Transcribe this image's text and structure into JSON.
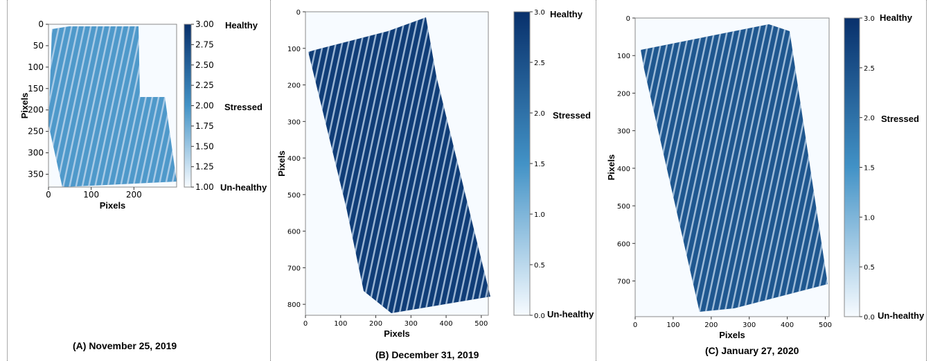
{
  "colors": {
    "dark": "#08306b",
    "mid": "#4292c6",
    "light": "#c6dbef",
    "background": "#f7fbff",
    "frame": "#888888"
  },
  "chart_data": [
    {
      "type": "heatmap",
      "caption": "(A) November 25, 2019",
      "xlabel": "Pixels",
      "ylabel": "Pixels",
      "xlim": [
        0,
        300
      ],
      "ylim": [
        380,
        0
      ],
      "xticks": [
        0,
        100,
        200
      ],
      "yticks": [
        0,
        50,
        100,
        150,
        200,
        250,
        300,
        350
      ],
      "colorbar": {
        "range": [
          1.0,
          3.0
        ],
        "ticks": [
          "1.00",
          "1.25",
          "1.50",
          "1.75",
          "2.00",
          "2.25",
          "2.50",
          "2.75",
          "3.00"
        ],
        "healthy_label": "Healthy",
        "stressed_label": "Stressed",
        "unhealthy_label": "Un-healthy"
      },
      "field_description_value": 1.9
    },
    {
      "type": "heatmap",
      "caption": "(B) December 31, 2019",
      "xlabel": "Pixels",
      "ylabel": "Pixels",
      "xlim": [
        0,
        520
      ],
      "ylim": [
        830,
        0
      ],
      "xticks": [
        0,
        100,
        200,
        300,
        400,
        500
      ],
      "yticks": [
        0,
        100,
        200,
        300,
        400,
        500,
        600,
        700,
        800
      ],
      "colorbar": {
        "range": [
          0.0,
          3.0
        ],
        "ticks": [
          "0.0",
          "0.5",
          "1.0",
          "1.5",
          "2.0",
          "2.5",
          "3.0"
        ],
        "healthy_label": "Healthy",
        "stressed_label": "Stressed",
        "unhealthy_label": "Un-healthy"
      },
      "field_description_value": 2.8
    },
    {
      "type": "heatmap",
      "caption": "(C) January 27, 2020",
      "xlabel": "Pixels",
      "ylabel": "Pixels",
      "xlim": [
        0,
        510
      ],
      "ylim": [
        795,
        0
      ],
      "xticks": [
        0,
        100,
        200,
        300,
        400,
        500
      ],
      "yticks": [
        0,
        100,
        200,
        300,
        400,
        500,
        600,
        700
      ],
      "colorbar": {
        "range": [
          0.0,
          3.0
        ],
        "ticks": [
          "0.0",
          "0.5",
          "1.0",
          "1.5",
          "2.0",
          "2.5",
          "3.0"
        ],
        "healthy_label": "Healthy",
        "stressed_label": "Stressed",
        "unhealthy_label": "Un-healthy"
      },
      "field_description_value": 2.4
    }
  ]
}
